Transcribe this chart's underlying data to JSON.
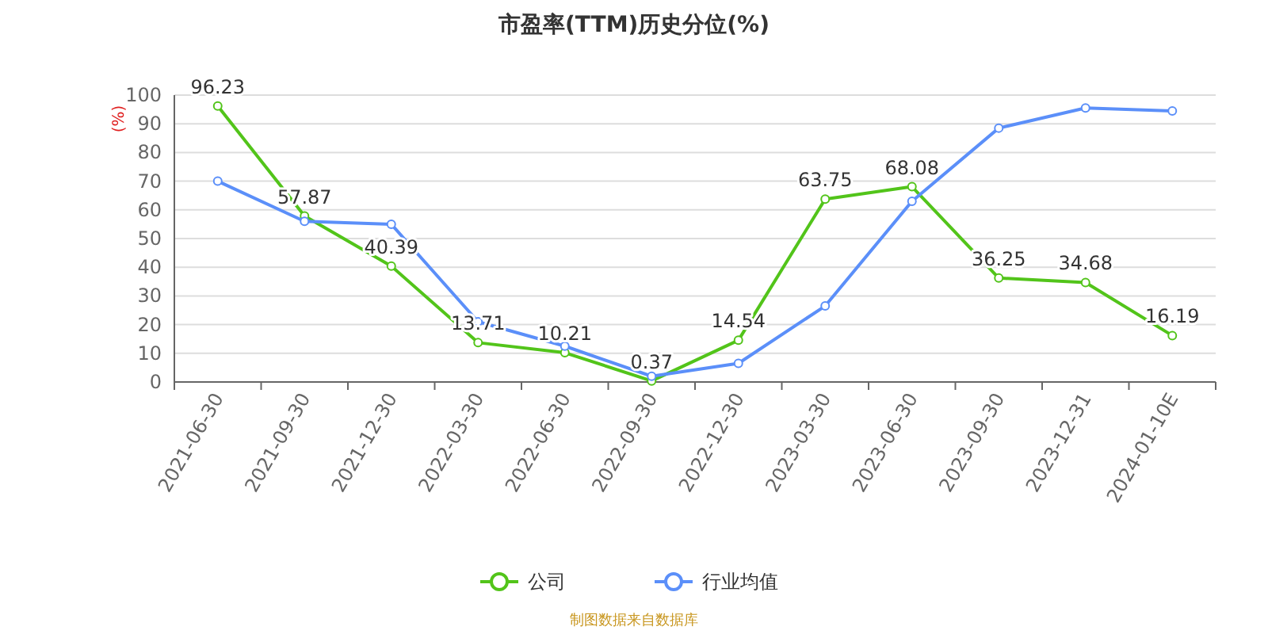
{
  "chart_data": {
    "type": "line",
    "title": "市盈率(TTM)历史分位(%)",
    "ylabel": "(%)",
    "categories": [
      "2021-06-30",
      "2021-09-30",
      "2021-12-30",
      "2022-03-30",
      "2022-06-30",
      "2022-09-30",
      "2022-12-30",
      "2023-03-30",
      "2023-06-30",
      "2023-09-30",
      "2023-12-31",
      "2024-01-10E"
    ],
    "series": [
      {
        "name": "公司",
        "color": "#52c41a",
        "values": [
          96.23,
          57.87,
          40.39,
          13.71,
          10.21,
          0.37,
          14.54,
          63.75,
          68.08,
          36.25,
          34.68,
          16.19
        ],
        "value_labels": [
          "96.23",
          "57.87",
          "40.39",
          "13.71",
          "10.21",
          "0.37",
          "14.54",
          "63.75",
          "68.08",
          "36.25",
          "34.68",
          "16.19"
        ]
      },
      {
        "name": "行业均值",
        "color": "#5b8ff9",
        "values": [
          70,
          56,
          55,
          21,
          12.5,
          2,
          6.5,
          26.5,
          63,
          88.5,
          95.5,
          94.5
        ]
      }
    ],
    "ylim": [
      0,
      100
    ],
    "yticks": [
      0,
      10,
      20,
      30,
      40,
      50,
      60,
      70,
      80,
      90,
      100
    ],
    "grid": "y",
    "legend": "bottom",
    "marker": "circle",
    "annotations": [
      "制图数据来自数据库"
    ]
  }
}
